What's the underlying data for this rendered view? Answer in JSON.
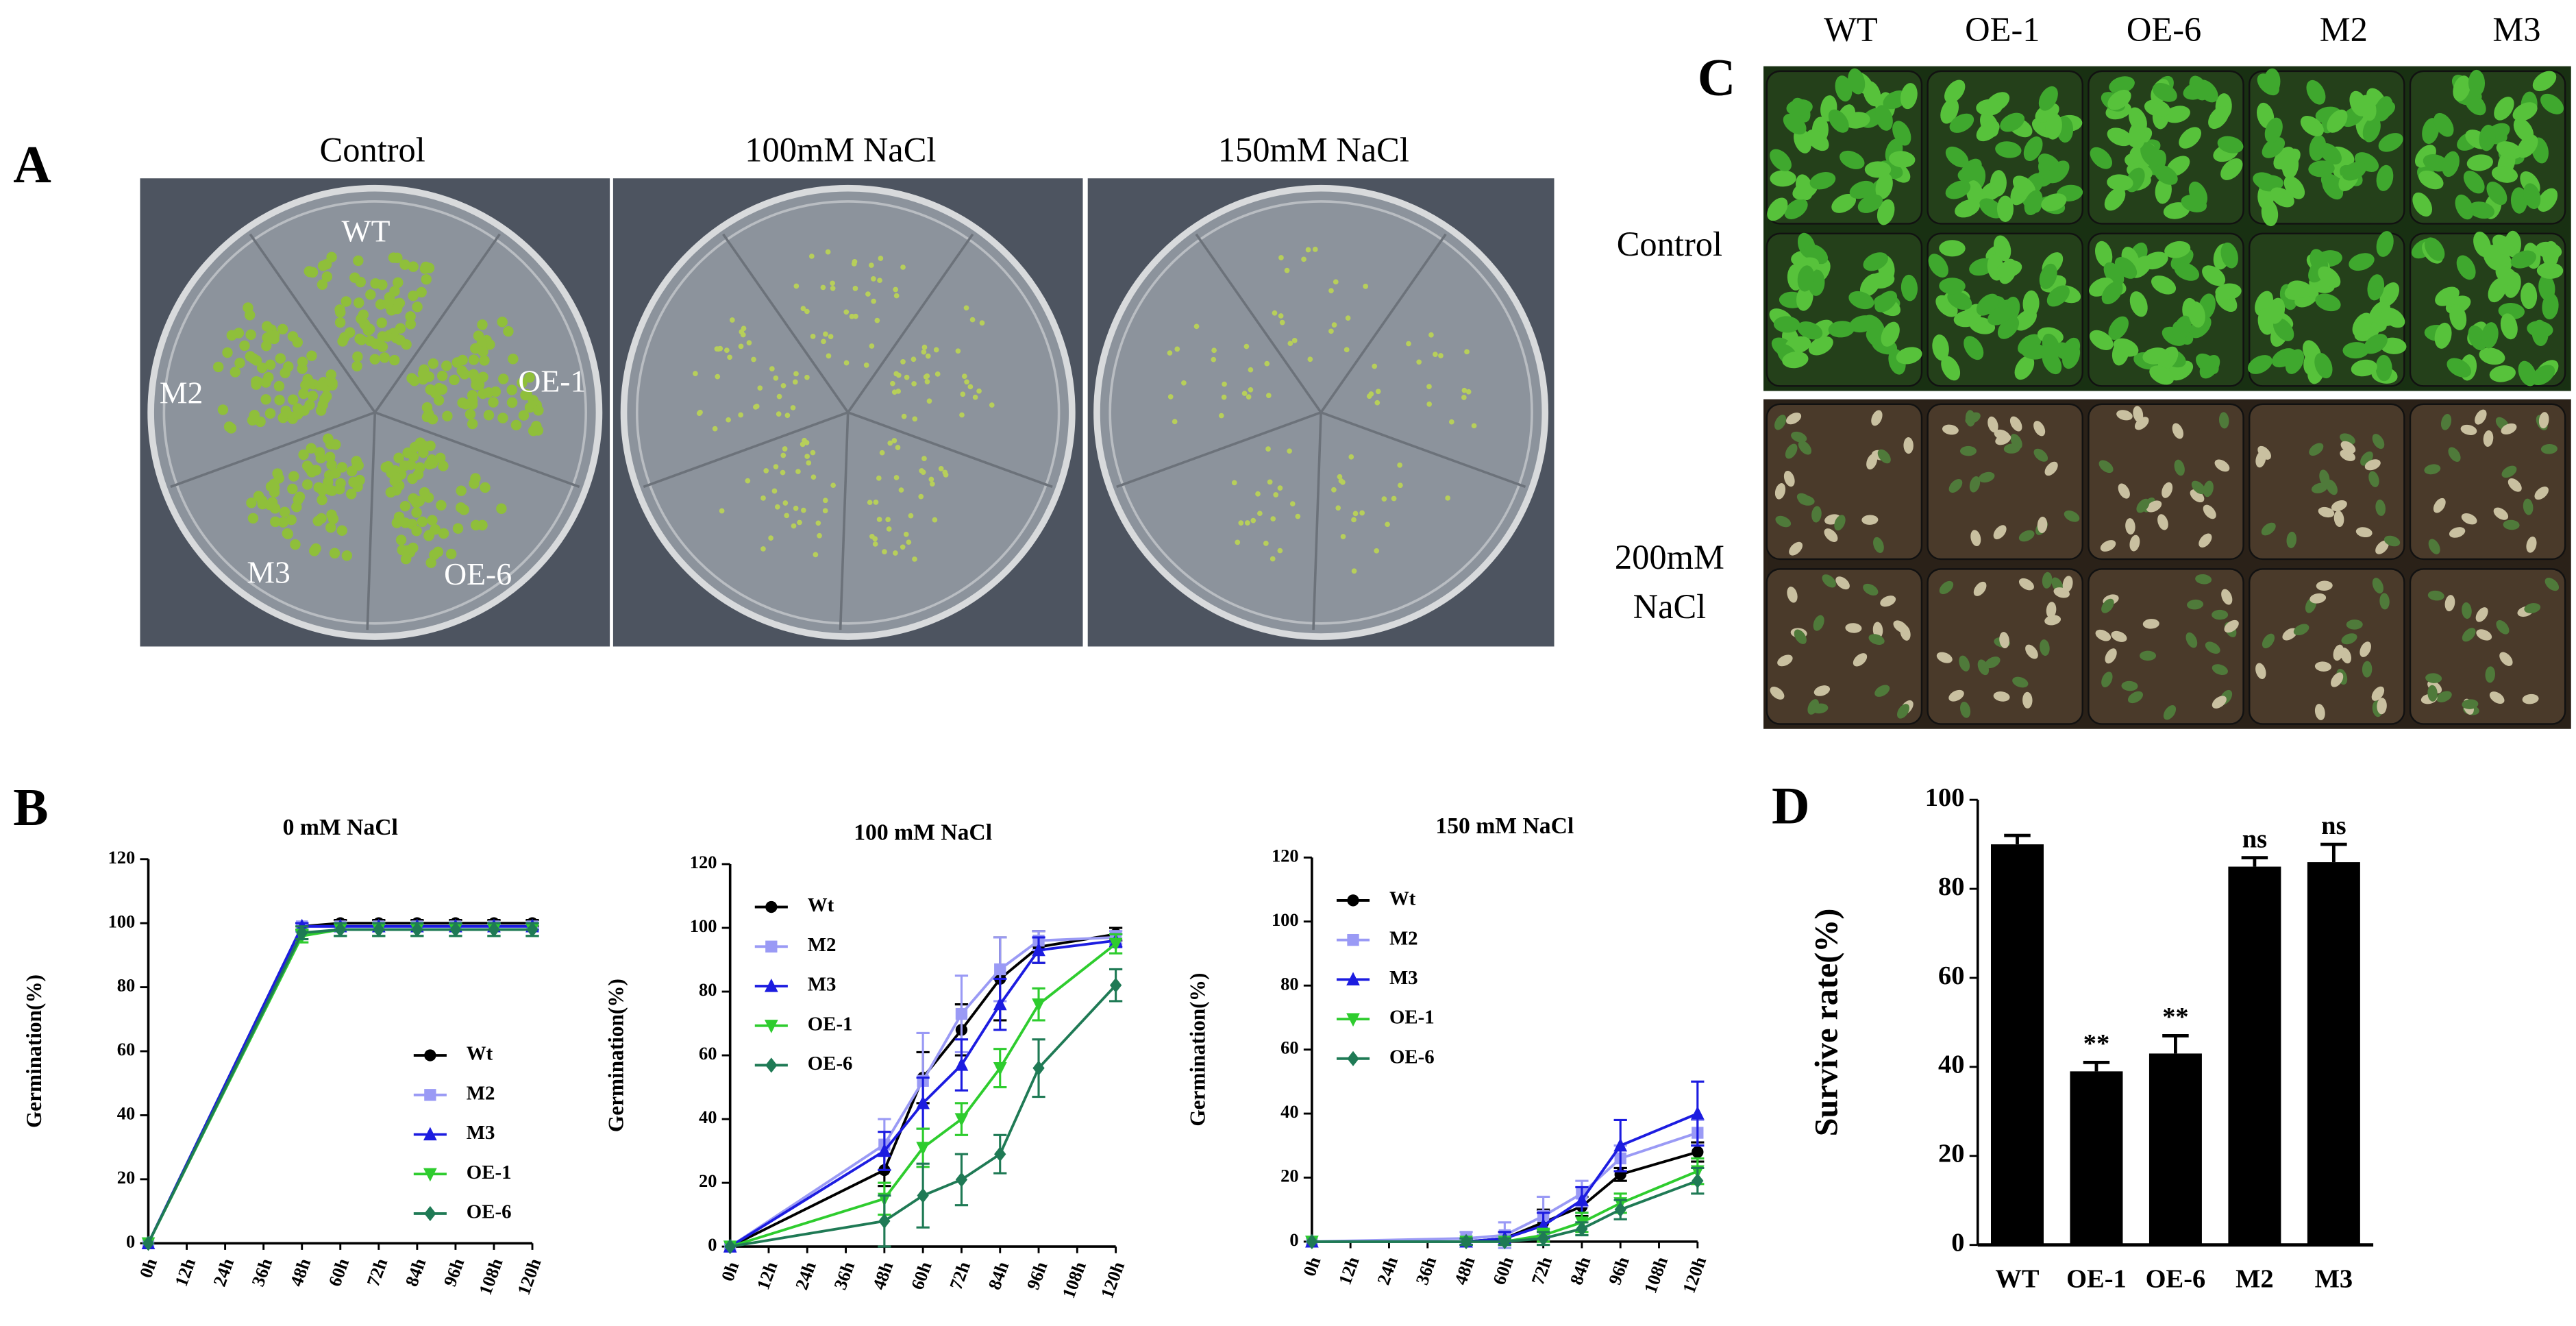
{
  "panel_labels": [
    "A",
    "B",
    "C",
    "D"
  ],
  "panel_a": {
    "conditions": [
      "Control",
      "100mM NaCl",
      "150mM NaCl"
    ],
    "plate_labels": [
      "WT",
      "M2",
      "OE-1",
      "M3",
      "OE-6"
    ]
  },
  "panel_c": {
    "genotypes": [
      "WT",
      "OE-1",
      "OE-6",
      "M2",
      "M3"
    ],
    "treatment_labels": [
      [
        "Control"
      ],
      [
        "200mM",
        "NaCl"
      ]
    ]
  },
  "chart_data": [
    {
      "type": "line",
      "title": "0 mM NaCl",
      "ylabel": "Germination(%)",
      "x": [
        0,
        48,
        60,
        72,
        84,
        96,
        108,
        120
      ],
      "xlim": [
        0,
        120
      ],
      "xticks": [
        {
          "value": 0,
          "label": "0h"
        },
        {
          "value": 12,
          "label": "12h"
        },
        {
          "value": 24,
          "label": "24h"
        },
        {
          "value": 36,
          "label": "36h"
        },
        {
          "value": 48,
          "label": "48h"
        },
        {
          "value": 60,
          "label": "60h"
        },
        {
          "value": 72,
          "label": "72h"
        },
        {
          "value": 84,
          "label": "84h"
        },
        {
          "value": 96,
          "label": "96h"
        },
        {
          "value": 108,
          "label": "108h"
        },
        {
          "value": 120,
          "label": "120h"
        }
      ],
      "ylim": [
        0,
        120
      ],
      "yticks": [
        0,
        20,
        40,
        60,
        80,
        100,
        120
      ],
      "legend": "lower right",
      "series": [
        {
          "name": "Wt",
          "color": "#000000",
          "marker": "circle",
          "values": [
            0,
            99,
            100,
            100,
            100,
            100,
            100,
            100
          ],
          "errors": [
            0,
            1,
            1,
            1,
            1,
            1,
            1,
            1
          ]
        },
        {
          "name": "M2",
          "color": "#9a9af5",
          "marker": "square",
          "values": [
            0,
            99,
            99,
            99,
            99,
            99,
            99,
            99
          ],
          "errors": [
            0,
            1,
            1,
            1,
            1,
            1,
            1,
            1
          ]
        },
        {
          "name": "M3",
          "color": "#1c1ce0",
          "marker": "triangle-up",
          "values": [
            0,
            99,
            99,
            99,
            99,
            99,
            99,
            99
          ],
          "errors": [
            0,
            1,
            1,
            1,
            1,
            1,
            1,
            1
          ]
        },
        {
          "name": "OE-1",
          "color": "#2ecc2e",
          "marker": "triangle-down",
          "values": [
            0,
            96,
            98,
            98,
            98,
            98,
            98,
            98
          ],
          "errors": [
            0,
            2,
            2,
            2,
            2,
            2,
            2,
            2
          ]
        },
        {
          "name": "OE-6",
          "color": "#1f7a55",
          "marker": "diamond",
          "values": [
            0,
            97,
            98,
            98,
            98,
            98,
            98,
            98
          ],
          "errors": [
            0,
            2,
            2,
            2,
            2,
            2,
            2,
            2
          ]
        }
      ]
    },
    {
      "type": "line",
      "title": "100 mM NaCl",
      "ylabel": "Germination(%)",
      "x": [
        0,
        48,
        60,
        72,
        84,
        96,
        120
      ],
      "xlim": [
        0,
        120
      ],
      "xticks": [
        {
          "value": 0,
          "label": "0h"
        },
        {
          "value": 12,
          "label": "12h"
        },
        {
          "value": 24,
          "label": "24h"
        },
        {
          "value": 36,
          "label": "36h"
        },
        {
          "value": 48,
          "label": "48h"
        },
        {
          "value": 60,
          "label": "60h"
        },
        {
          "value": 72,
          "label": "72h"
        },
        {
          "value": 84,
          "label": "84h"
        },
        {
          "value": 96,
          "label": "96h"
        },
        {
          "value": 108,
          "label": "108h"
        },
        {
          "value": 120,
          "label": "120h"
        }
      ],
      "ylim": [
        0,
        120
      ],
      "yticks": [
        0,
        20,
        40,
        60,
        80,
        100,
        120
      ],
      "legend": "upper left",
      "series": [
        {
          "name": "Wt",
          "color": "#000000",
          "marker": "circle",
          "values": [
            0,
            24,
            53,
            68,
            84,
            94,
            98
          ],
          "errors": [
            0,
            5,
            8,
            8,
            13,
            5,
            2
          ]
        },
        {
          "name": "M2",
          "color": "#9a9af5",
          "marker": "square",
          "values": [
            0,
            32,
            52,
            73,
            87,
            96,
            97
          ],
          "errors": [
            0,
            8,
            15,
            12,
            10,
            3,
            2
          ]
        },
        {
          "name": "M3",
          "color": "#1c1ce0",
          "marker": "triangle-up",
          "values": [
            0,
            30,
            45,
            57,
            76,
            93,
            96
          ],
          "errors": [
            0,
            6,
            8,
            8,
            8,
            4,
            2
          ]
        },
        {
          "name": "OE-1",
          "color": "#2ecc2e",
          "marker": "triangle-down",
          "values": [
            0,
            15,
            31,
            40,
            56,
            76,
            95
          ],
          "errors": [
            0,
            5,
            6,
            5,
            6,
            5,
            3
          ]
        },
        {
          "name": "OE-6",
          "color": "#1f7a55",
          "marker": "diamond",
          "values": [
            0,
            8,
            16,
            21,
            29,
            56,
            82
          ],
          "errors": [
            0,
            8,
            10,
            8,
            6,
            9,
            5
          ]
        }
      ]
    },
    {
      "type": "line",
      "title": "150 mM NaCl",
      "ylabel": "Germination(%)",
      "x": [
        0,
        48,
        60,
        72,
        84,
        96,
        120
      ],
      "xlim": [
        0,
        120
      ],
      "xticks": [
        {
          "value": 0,
          "label": "0h"
        },
        {
          "value": 12,
          "label": "12h"
        },
        {
          "value": 24,
          "label": "24h"
        },
        {
          "value": 36,
          "label": "36h"
        },
        {
          "value": 48,
          "label": "48h"
        },
        {
          "value": 60,
          "label": "60h"
        },
        {
          "value": 72,
          "label": "72h"
        },
        {
          "value": 84,
          "label": "84h"
        },
        {
          "value": 96,
          "label": "96h"
        },
        {
          "value": 108,
          "label": "108h"
        },
        {
          "value": 120,
          "label": "120h"
        }
      ],
      "ylim": [
        0,
        120
      ],
      "yticks": [
        0,
        20,
        40,
        60,
        80,
        100,
        120
      ],
      "legend": "upper left",
      "series": [
        {
          "name": "Wt",
          "color": "#000000",
          "marker": "circle",
          "values": [
            0,
            0,
            1,
            6,
            11,
            21,
            28
          ],
          "errors": [
            0,
            1,
            2,
            4,
            3,
            2,
            3
          ]
        },
        {
          "name": "M2",
          "color": "#9a9af5",
          "marker": "square",
          "values": [
            0,
            1,
            2,
            8,
            15,
            26,
            34
          ],
          "errors": [
            0,
            2,
            4,
            6,
            4,
            4,
            4
          ]
        },
        {
          "name": "M3",
          "color": "#1c1ce0",
          "marker": "triangle-up",
          "values": [
            0,
            0,
            1,
            5,
            13,
            30,
            40
          ],
          "errors": [
            0,
            1,
            2,
            4,
            4,
            8,
            10
          ]
        },
        {
          "name": "OE-1",
          "color": "#2ecc2e",
          "marker": "triangle-down",
          "values": [
            0,
            0,
            0,
            2,
            6,
            12,
            22
          ],
          "errors": [
            0,
            1,
            1,
            2,
            3,
            3,
            4
          ]
        },
        {
          "name": "OE-6",
          "color": "#1f7a55",
          "marker": "diamond",
          "values": [
            0,
            0,
            0,
            1,
            4,
            10,
            19
          ],
          "errors": [
            0,
            1,
            1,
            2,
            2,
            3,
            4
          ]
        }
      ]
    },
    {
      "type": "bar",
      "ylabel": "Survive rate(%)",
      "categories": [
        "WT",
        "OE-1",
        "OE-6",
        "M2",
        "M3"
      ],
      "values": [
        90,
        39,
        43,
        85,
        86
      ],
      "errors": [
        2,
        2,
        4,
        2,
        4
      ],
      "significance": [
        null,
        "**",
        "**",
        "ns",
        "ns"
      ],
      "color": "#000000",
      "ylim": [
        0,
        100
      ],
      "yticks": [
        0,
        20,
        40,
        60,
        80,
        100
      ]
    }
  ]
}
